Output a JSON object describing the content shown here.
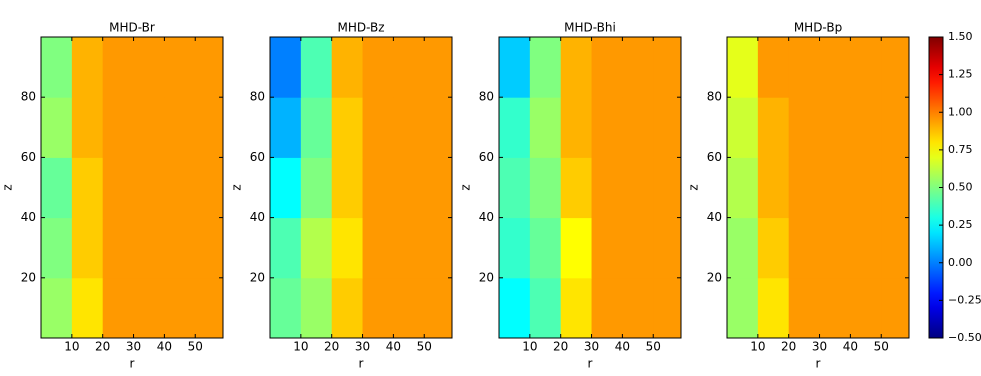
{
  "chart_data": [
    {
      "type": "heatmap",
      "title": "MHD-Br",
      "xlabel": "r",
      "ylabel": "z",
      "xlim": [
        0,
        59
      ],
      "ylim": [
        0,
        100
      ],
      "xticks": [
        10,
        20,
        30,
        40,
        50
      ],
      "yticks": [
        20,
        40,
        60,
        80
      ],
      "xbins": [
        0,
        10,
        20,
        30,
        40,
        50,
        59
      ],
      "ybins": [
        0,
        20,
        40,
        60,
        80,
        100
      ],
      "values": [
        [
          0.55,
          0.8,
          0.95,
          0.95,
          0.95,
          0.95
        ],
        [
          0.5,
          0.85,
          0.95,
          0.95,
          0.95,
          0.95
        ],
        [
          0.45,
          0.85,
          0.95,
          0.95,
          0.95,
          0.95
        ],
        [
          0.55,
          0.9,
          0.95,
          0.95,
          0.95,
          0.95
        ],
        [
          0.5,
          0.9,
          0.95,
          0.95,
          0.95,
          0.95
        ]
      ]
    },
    {
      "type": "heatmap",
      "title": "MHD-Bz",
      "xlabel": "r",
      "ylabel": "z",
      "xlim": [
        0,
        59
      ],
      "ylim": [
        0,
        100
      ],
      "xticks": [
        10,
        20,
        30,
        40,
        50
      ],
      "yticks": [
        20,
        40,
        60,
        80
      ],
      "xbins": [
        0,
        10,
        20,
        30,
        40,
        50,
        59
      ],
      "ybins": [
        0,
        20,
        40,
        60,
        80,
        100
      ],
      "values": [
        [
          0.45,
          0.55,
          0.85,
          0.95,
          0.95,
          0.95
        ],
        [
          0.4,
          0.6,
          0.8,
          0.95,
          0.95,
          0.95
        ],
        [
          0.25,
          0.5,
          0.85,
          0.95,
          0.95,
          0.95
        ],
        [
          0.1,
          0.45,
          0.85,
          0.95,
          0.95,
          0.95
        ],
        [
          0.0,
          0.4,
          0.9,
          0.95,
          0.95,
          0.95
        ]
      ]
    },
    {
      "type": "heatmap",
      "title": "MHD-Bhi",
      "xlabel": "r",
      "ylabel": "z",
      "xlim": [
        0,
        59
      ],
      "ylim": [
        0,
        100
      ],
      "xticks": [
        10,
        20,
        30,
        40,
        50
      ],
      "yticks": [
        20,
        40,
        60,
        80
      ],
      "xbins": [
        0,
        10,
        20,
        30,
        40,
        50,
        59
      ],
      "ybins": [
        0,
        20,
        40,
        60,
        80,
        100
      ],
      "values": [
        [
          0.25,
          0.4,
          0.8,
          0.95,
          0.95,
          0.95
        ],
        [
          0.35,
          0.45,
          0.75,
          0.95,
          0.95,
          0.95
        ],
        [
          0.4,
          0.5,
          0.85,
          0.95,
          0.95,
          0.95
        ],
        [
          0.35,
          0.55,
          0.9,
          0.95,
          0.95,
          0.95
        ],
        [
          0.15,
          0.5,
          0.9,
          0.95,
          0.95,
          0.95
        ]
      ]
    },
    {
      "type": "heatmap",
      "title": "MHD-Bp",
      "xlabel": "r",
      "ylabel": "z",
      "xlim": [
        0,
        59
      ],
      "ylim": [
        0,
        100
      ],
      "xticks": [
        10,
        20,
        30,
        40,
        50
      ],
      "yticks": [
        20,
        40,
        60,
        80
      ],
      "xbins": [
        0,
        10,
        20,
        30,
        40,
        50,
        59
      ],
      "ybins": [
        0,
        20,
        40,
        60,
        80,
        100
      ],
      "values": [
        [
          0.55,
          0.8,
          0.95,
          0.95,
          0.95,
          0.95
        ],
        [
          0.55,
          0.85,
          0.95,
          0.95,
          0.95,
          0.95
        ],
        [
          0.6,
          0.9,
          0.95,
          0.95,
          0.95,
          0.95
        ],
        [
          0.65,
          0.9,
          0.95,
          0.95,
          0.95,
          0.95
        ],
        [
          0.7,
          0.95,
          0.95,
          0.95,
          0.95,
          0.95
        ]
      ]
    }
  ],
  "colorbar": {
    "colormap": "jet",
    "lim": [
      -0.5,
      1.5
    ],
    "ticks": [
      {
        "value": 1.5,
        "label": "1.50"
      },
      {
        "value": 1.25,
        "label": "1.25"
      },
      {
        "value": 1.0,
        "label": "1.00"
      },
      {
        "value": 0.75,
        "label": "0.75"
      },
      {
        "value": 0.5,
        "label": "0.50"
      },
      {
        "value": 0.25,
        "label": "0.25"
      },
      {
        "value": 0.0,
        "label": "0.00"
      },
      {
        "value": -0.25,
        "label": "−0.25"
      },
      {
        "value": -0.5,
        "label": "−0.50"
      }
    ]
  }
}
